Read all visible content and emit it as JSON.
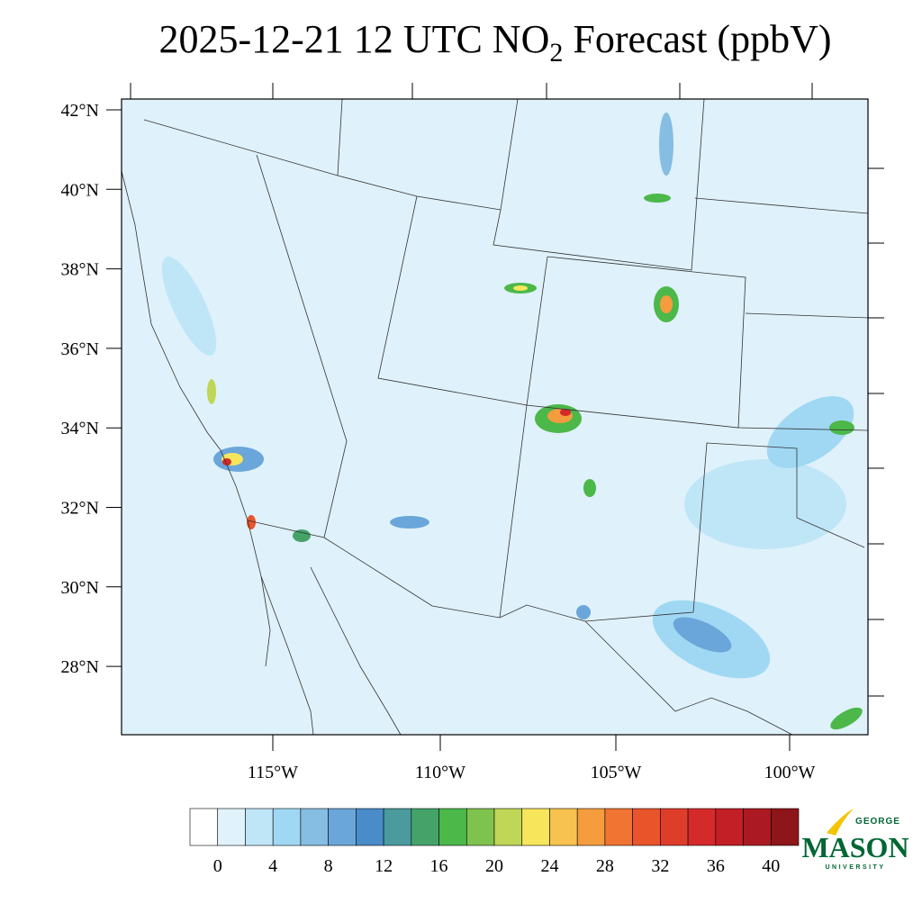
{
  "title": {
    "main": "2025-12-21 12 UTC NO",
    "subscript": "2",
    "rest": " Forecast (ppbV)"
  },
  "lat_labels": [
    "42°N",
    "40°N",
    "38°N",
    "36°N",
    "34°N",
    "32°N",
    "30°N",
    "28°N"
  ],
  "lon_labels": [
    "115°W",
    "110°W",
    "105°W",
    "100°W"
  ],
  "colorbar": {
    "colors": [
      "#ffffff",
      "#e0f3fb",
      "#bfe6f7",
      "#a0d8f3",
      "#86bde3",
      "#6aa6d9",
      "#4a8cc9",
      "#4a9a9e",
      "#45a36a",
      "#4cb84a",
      "#7fc34f",
      "#bfd657",
      "#f7e65b",
      "#f7c24f",
      "#f59c3e",
      "#f07432",
      "#e9542b",
      "#de3d2a",
      "#d42a2a",
      "#c21f26",
      "#ab1a22",
      "#8e1519"
    ],
    "labels": [
      0,
      4,
      8,
      12,
      16,
      20,
      24,
      28,
      32,
      36,
      40
    ]
  },
  "logo": {
    "top": "GEORGE",
    "name": "MASON",
    "bottom": "UNIVERSITY"
  }
}
